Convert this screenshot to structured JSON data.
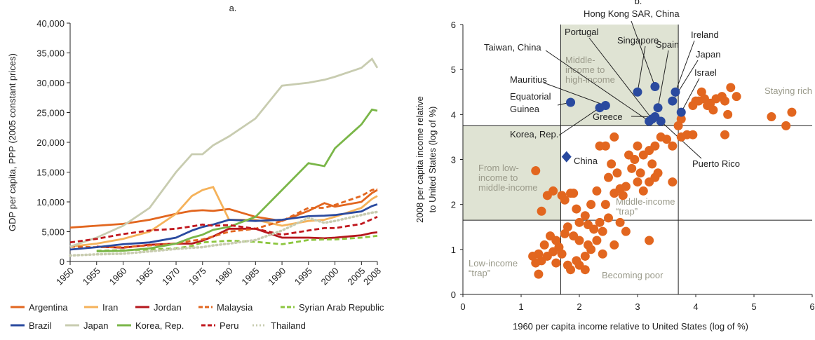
{
  "chart_data": [
    {
      "type": "line",
      "title": "a.",
      "ylabel": "GDP per capita, PPP (2005 constant prices)",
      "x": [
        1950,
        1955,
        1960,
        1965,
        1970,
        1973,
        1975,
        1977,
        1980,
        1985,
        1990,
        1995,
        1998,
        2000,
        2005,
        2007,
        2008
      ],
      "xlim": [
        1950,
        2008
      ],
      "xticks": [
        1950,
        1955,
        1960,
        1965,
        1970,
        1975,
        1980,
        1985,
        1990,
        1995,
        2000,
        2005,
        2008
      ],
      "ylim": [
        0,
        40000
      ],
      "yticks": [
        0,
        {
          "value": 5000,
          "label": "5,000"
        },
        {
          "value": 10000,
          "label": "10,000"
        },
        {
          "value": 15000,
          "label": "15,000"
        },
        {
          "value": 20000,
          "label": "20,000"
        },
        {
          "value": 25000,
          "label": "25,000"
        },
        {
          "value": 30000,
          "label": "30,000"
        },
        {
          "value": 35000,
          "label": "35,000"
        },
        {
          "value": 40000,
          "label": "40,000"
        }
      ],
      "series": [
        {
          "name": "Argentina",
          "color": "#e2661f",
          "dash": "solid",
          "values": [
            5700,
            6000,
            6300,
            7000,
            8000,
            8500,
            8600,
            8500,
            8800,
            7500,
            6800,
            8500,
            9800,
            9200,
            10000,
            11500,
            12000
          ]
        },
        {
          "name": "Iran",
          "color": "#f5b25a",
          "dash": "solid",
          "values": [
            2500,
            3000,
            3800,
            5000,
            8000,
            11000,
            12000,
            12500,
            7000,
            7000,
            6000,
            6800,
            7000,
            7500,
            9000,
            10500,
            11000
          ]
        },
        {
          "name": "Jordan",
          "color": "#b5171d",
          "dash": "solid",
          "values": [
            null,
            2500,
            2300,
            2800,
            3000,
            3000,
            3500,
            4200,
            5500,
            5500,
            4000,
            4000,
            3900,
            4000,
            4400,
            4800,
            4900
          ]
        },
        {
          "name": "Malaysia",
          "color": "#e2661f",
          "dash": "dashed",
          "values": [
            2500,
            2400,
            2400,
            2700,
            3000,
            3500,
            3700,
            4200,
            5000,
            5500,
            6800,
            9000,
            9000,
            9500,
            11000,
            12000,
            12200
          ]
        },
        {
          "name": "Syrian Arab Republic",
          "color": "#8cc63f",
          "dash": "dashed",
          "values": [
            null,
            1800,
            1900,
            2000,
            2200,
            2600,
            3200,
            3300,
            3500,
            3300,
            2900,
            3600,
            3700,
            3700,
            4000,
            4200,
            4300
          ]
        },
        {
          "name": "Brazil",
          "color": "#2a4a9f",
          "dash": "solid",
          "values": [
            2000,
            2400,
            2900,
            3200,
            4000,
            5200,
            5800,
            6200,
            7000,
            6800,
            7000,
            7600,
            7700,
            7800,
            8400,
            9300,
            9600
          ]
        },
        {
          "name": "Japan",
          "color": "#c8ccb0",
          "dash": "solid",
          "values": [
            2500,
            4000,
            6000,
            9000,
            15000,
            18000,
            18000,
            19500,
            21000,
            24000,
            29500,
            30000,
            30500,
            31000,
            32500,
            34000,
            32500
          ]
        },
        {
          "name": "Korea, Rep.",
          "color": "#7ab648",
          "dash": "solid",
          "values": [
            null,
            1700,
            1800,
            2200,
            3000,
            4000,
            4500,
            5300,
            5800,
            7500,
            12000,
            16500,
            16000,
            19000,
            23000,
            25500,
            25300
          ]
        },
        {
          "name": "Peru",
          "color": "#c0171d",
          "dash": "dashed",
          "values": [
            3200,
            3800,
            4600,
            5200,
            5500,
            5900,
            6200,
            6000,
            6100,
            5500,
            4500,
            5200,
            5600,
            5600,
            6300,
            7100,
            7500
          ]
        },
        {
          "name": "Thailand",
          "color": "#c8ccb0",
          "dash": "dotted",
          "values": [
            1000,
            1200,
            1300,
            1700,
            2100,
            2300,
            2400,
            2700,
            3000,
            3600,
            5200,
            7300,
            6500,
            6800,
            7800,
            8200,
            8300
          ]
        }
      ]
    },
    {
      "type": "scatter",
      "title": "b.",
      "xlabel": "1960 per capita income relative to United States (log of %)",
      "ylabel": "2008 per capita income relative\nto United States (log of %)",
      "xlim": [
        0,
        6
      ],
      "xticks": [
        0,
        1,
        2,
        3,
        4,
        5,
        6
      ],
      "ylim": [
        0,
        6
      ],
      "yticks": [
        0,
        1,
        2,
        3,
        4,
        5,
        6
      ],
      "hlines": [
        3.75,
        1.65
      ],
      "vlines": [
        1.68,
        3.7
      ],
      "shaded": [
        [
          1.68,
          3.7,
          3.75,
          6
        ],
        [
          0,
          1.68,
          1.65,
          3.75
        ]
      ],
      "shade_color": "#dfe3d3",
      "region_labels": [
        "Middle-\nincome to\nhigh-income",
        "Staying rich",
        "From low-\nincome to\nmiddle-income",
        "Middle-income\n“trap”",
        "Low-income\n“trap”",
        "Becoming poor"
      ],
      "series": [
        {
          "color": "#e2661f",
          "marker": "circle",
          "x": [
            3.7,
            3.75,
            3.85,
            3.95,
            3.75,
            3.95,
            4.0,
            4.05,
            4.1,
            4.15,
            4.2,
            4.25,
            4.3,
            4.35,
            4.45,
            4.5,
            4.55,
            4.6,
            4.7,
            4.5,
            5.3,
            5.55,
            5.65,
            3.6,
            3.5,
            3.4,
            3.3,
            3.2,
            3.1,
            3.0,
            2.95,
            2.9,
            3.05,
            3.25,
            3.3,
            3.35,
            3.2,
            3.1,
            3.0,
            2.8,
            2.75,
            2.7,
            2.6,
            2.65,
            2.5,
            2.55,
            2.45,
            2.35,
            2.6,
            2.85,
            3.6,
            2.45,
            2.3,
            2.2,
            2.1,
            1.95,
            1.9,
            1.85,
            1.75,
            1.7,
            1.55,
            1.45,
            1.35,
            1.25,
            1.8,
            2.0,
            2.15,
            2.25,
            2.35,
            2.4,
            2.5,
            2.7,
            2.8,
            2.6,
            2.3,
            2.2,
            2.1,
            2.0,
            1.95,
            1.85,
            1.8,
            1.7,
            1.65,
            1.6,
            1.55,
            1.5,
            1.45,
            1.4,
            1.35,
            1.3,
            1.25,
            1.2,
            1.3,
            1.6,
            2.1,
            3.2,
            1.9,
            2.0,
            1.75,
            2.4,
            2.15
          ],
          "values": [
            3.75,
            3.5,
            3.55,
            3.55,
            3.9,
            4.2,
            4.3,
            4.3,
            4.5,
            4.35,
            4.2,
            4.25,
            4.1,
            4.35,
            4.4,
            4.3,
            4.0,
            4.6,
            4.4,
            3.55,
            3.95,
            3.75,
            4.05,
            3.3,
            3.45,
            3.5,
            3.3,
            3.2,
            3.1,
            3.3,
            3.0,
            2.8,
            2.7,
            2.9,
            2.6,
            2.7,
            2.5,
            2.3,
            2.5,
            2.4,
            2.2,
            2.35,
            2.25,
            2.7,
            2.6,
            2.9,
            3.3,
            3.3,
            3.5,
            3.1,
            2.5,
            2.0,
            2.3,
            2.0,
            1.75,
            1.9,
            2.25,
            2.25,
            2.1,
            2.2,
            2.3,
            2.2,
            1.85,
            2.75,
            1.5,
            1.6,
            1.55,
            1.45,
            1.6,
            1.4,
            1.7,
            1.6,
            1.4,
            1.1,
            1.2,
            1.0,
            0.85,
            0.65,
            0.75,
            0.55,
            0.65,
            0.9,
            1.05,
            1.2,
            0.95,
            1.3,
            0.85,
            1.1,
            0.75,
            0.9,
            0.7,
            0.85,
            0.45,
            0.7,
            0.55,
            1.2,
            1.3,
            1.2,
            1.35,
            0.9,
            1.1
          ]
        },
        {
          "color": "#2a4a9f",
          "marker": "circle",
          "x": [
            1.85,
            2.45,
            2.35,
            3.2,
            3.25,
            3.0,
            3.3,
            3.35,
            3.65,
            3.6,
            3.75,
            3.3,
            3.4
          ],
          "values": [
            4.27,
            4.2,
            4.15,
            3.85,
            3.9,
            4.5,
            4.62,
            4.15,
            4.5,
            4.3,
            4.05,
            3.95,
            3.85
          ],
          "labels": [
            "Equatorial\nGuinea",
            "Mauritius",
            "Korea, Rep.",
            "Taiwan, China",
            "Portugal",
            "Singapore",
            "Hong Kong SAR, China",
            "Spain",
            "Ireland",
            "Japan",
            "Israel",
            "Greece",
            "Puerto Rico"
          ]
        },
        {
          "color": "#2a4a9f",
          "marker": "diamond",
          "x": [
            1.78
          ],
          "values": [
            3.06
          ],
          "labels": [
            "China"
          ]
        }
      ]
    }
  ]
}
